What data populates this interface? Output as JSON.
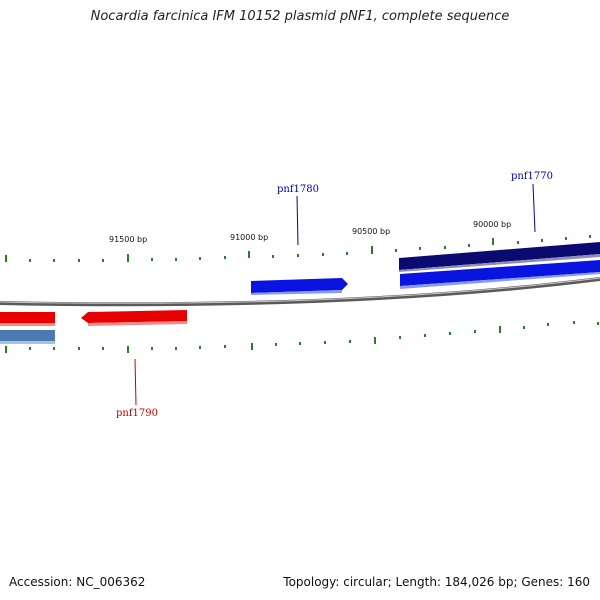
{
  "title": "Nocardia farcinica IFM 10152 plasmid pNF1, complete sequence",
  "footer": {
    "accession": "Accession: NC_006362",
    "summary": "Topology: circular; Length: 184,026 bp; Genes: 160"
  },
  "scale_labels": [
    "91500 bp",
    "91000 bp",
    "90500 bp",
    "90000 bp"
  ],
  "genes": [
    {
      "name": "pnf1770",
      "color": "#0000b0"
    },
    {
      "name": "pnf1780",
      "color": "#0000b0"
    },
    {
      "name": "pnf1790",
      "color": "#c00000"
    }
  ],
  "colors": {
    "backbone": "#808080",
    "ticks": "#2e7d2e",
    "forward_gene": "#0a14e0",
    "forward_gene_dark": "#0a0a70",
    "reverse_gene": "#e80000",
    "other_feature": "#4a7ab0"
  }
}
